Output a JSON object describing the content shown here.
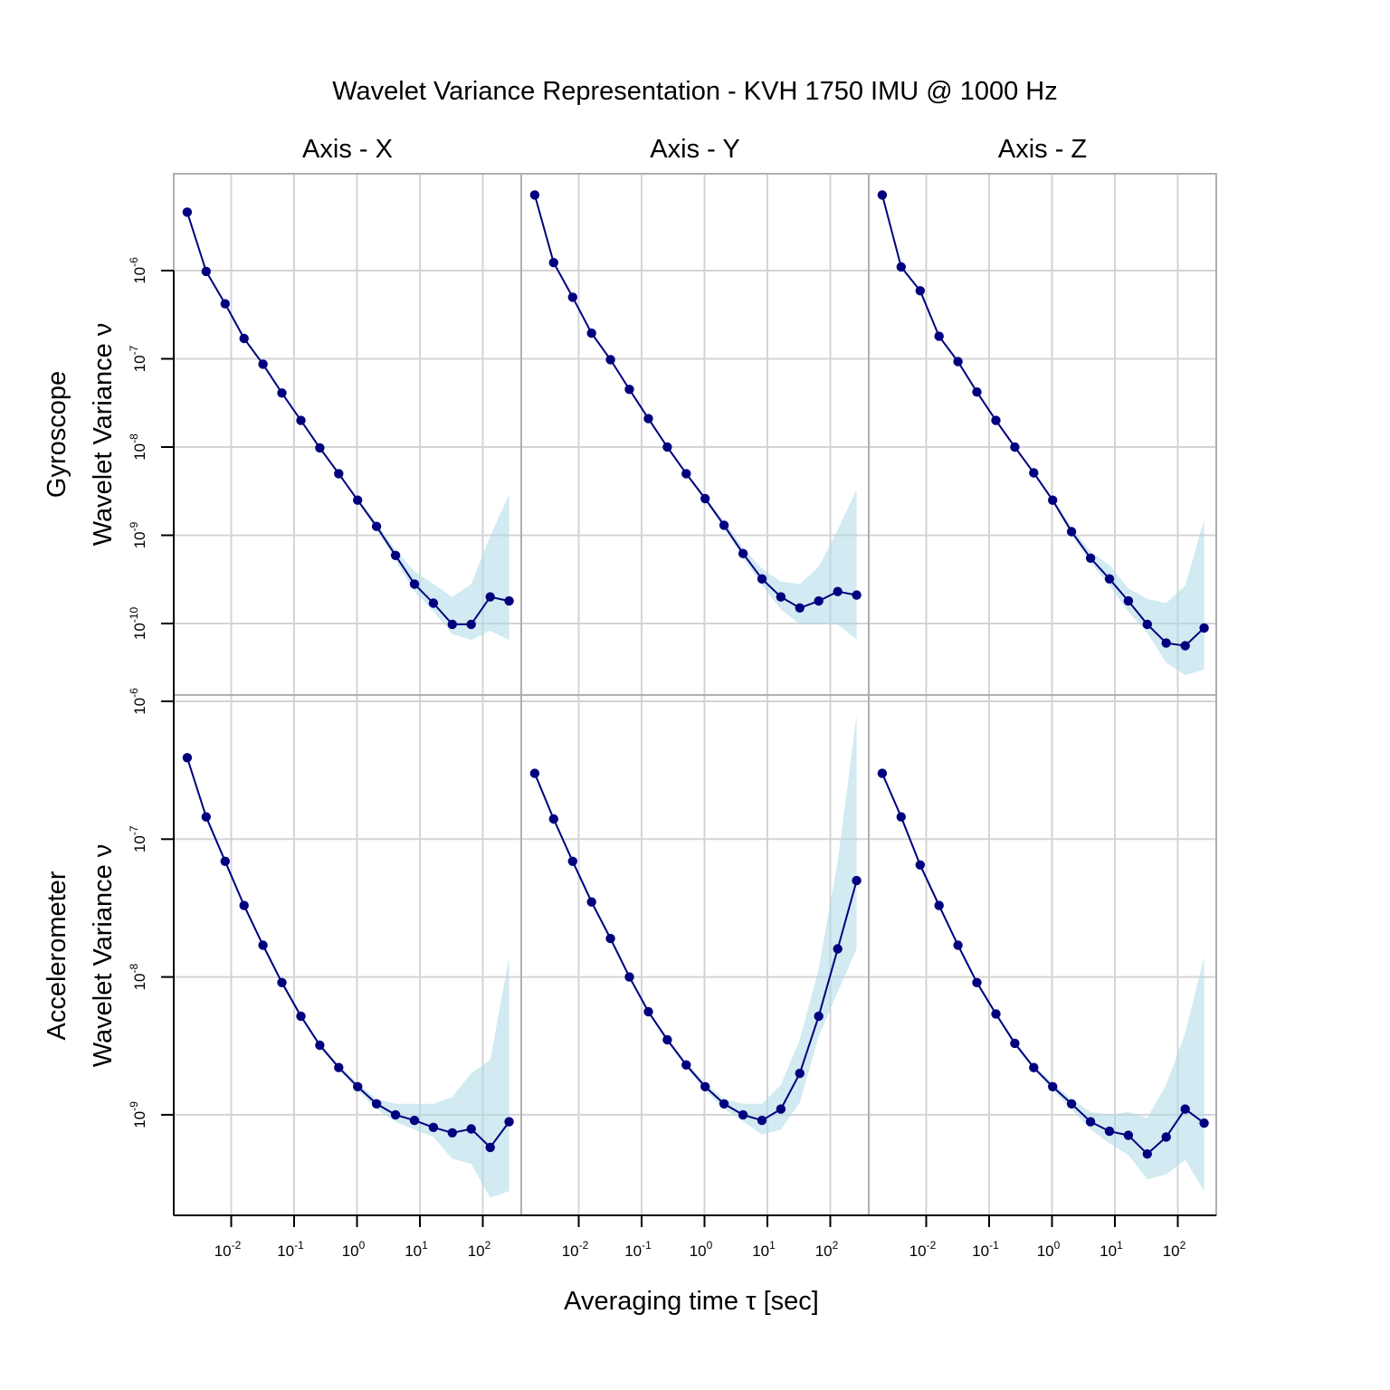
{
  "chart_data": {
    "type": "line",
    "title": "Wavelet Variance Representation - KVH 1750 IMU @ 1000 Hz",
    "xlabel": "Averaging time τ [sec]",
    "ylabel": "Wavelet Variance ν",
    "x_scale": "log",
    "y_scale": "log",
    "grid": true,
    "columns": [
      "Axis - X",
      "Axis - Y",
      "Axis - Z"
    ],
    "rows": [
      {
        "name": "Gyroscope",
        "ylim": [
          1.26e-05,
          1.6e-11
        ],
        "yticks": [
          -6,
          -7,
          -8,
          -9,
          -10
        ]
      },
      {
        "name": "Accelerometer",
        "ylim": [
          1.1e-06,
          1.86e-10
        ],
        "yticks": [
          -6,
          -7,
          -8,
          -9
        ]
      }
    ],
    "xticks": [
      -2,
      -1,
      0,
      1,
      2
    ],
    "tick_base": "10",
    "x": [
      0.002,
      0.004,
      0.008,
      0.016,
      0.032,
      0.064,
      0.128,
      0.256,
      0.512,
      1.024,
      2.048,
      4.096,
      8.192,
      16.384,
      32.768,
      65.536,
      131.072,
      262.144
    ],
    "panels": [
      {
        "row": "Gyroscope",
        "column": "Axis - X",
        "values": [
          4.6e-06,
          9.8e-07,
          4.2e-07,
          1.7e-07,
          8.7e-08,
          4.1e-08,
          2e-08,
          9.8e-09,
          5e-09,
          2.5e-09,
          1.26e-09,
          5.9e-10,
          2.8e-10,
          1.7e-10,
          9.8e-11,
          9.8e-11,
          2e-10,
          1.8e-10
        ],
        "ci_lower": [
          null,
          null,
          null,
          null,
          null,
          null,
          null,
          null,
          null,
          2.4e-09,
          1.15e-09,
          5.2e-10,
          2.3e-10,
          1.38e-10,
          7.6e-11,
          6.5e-11,
          8.3e-11,
          6.5e-11
        ],
        "ci_upper": [
          null,
          null,
          null,
          null,
          null,
          null,
          null,
          null,
          null,
          2.6e-09,
          1.4e-09,
          6.8e-10,
          3.9e-10,
          2.8e-10,
          2e-10,
          2.8e-10,
          9.8e-10,
          2.9e-09
        ]
      },
      {
        "row": "Gyroscope",
        "column": "Axis - Y",
        "values": [
          7.2e-06,
          1.23e-06,
          5e-07,
          1.95e-07,
          9.8e-08,
          4.5e-08,
          2.1e-08,
          1e-08,
          5e-09,
          2.6e-09,
          1.3e-09,
          6.2e-10,
          3.2e-10,
          2e-10,
          1.5e-10,
          1.8e-10,
          2.3e-10,
          2.1e-10
        ],
        "ci_lower": [
          null,
          null,
          null,
          null,
          null,
          null,
          null,
          null,
          null,
          2.5e-09,
          1.2e-09,
          5.5e-10,
          2.7e-10,
          1.45e-10,
          9.8e-11,
          9.8e-11,
          9.8e-11,
          6.6e-11
        ],
        "ci_upper": [
          null,
          null,
          null,
          null,
          null,
          null,
          null,
          null,
          null,
          2.7e-09,
          1.45e-09,
          7.2e-10,
          4.2e-10,
          3e-10,
          2.8e-10,
          4.4e-10,
          1.15e-09,
          3.3e-09
        ]
      },
      {
        "row": "Gyroscope",
        "column": "Axis - Z",
        "values": [
          7.2e-06,
          1.1e-06,
          5.9e-07,
          1.8e-07,
          9.3e-08,
          4.2e-08,
          2e-08,
          1e-08,
          5.1e-09,
          2.5e-09,
          1.1e-09,
          5.5e-10,
          3.2e-10,
          1.8e-10,
          9.8e-11,
          6e-11,
          5.6e-11,
          8.9e-11
        ],
        "ci_lower": [
          null,
          null,
          null,
          null,
          null,
          null,
          null,
          null,
          null,
          2.4e-09,
          1e-09,
          4.9e-10,
          2.7e-10,
          1.35e-10,
          7.8e-11,
          3.6e-11,
          2.6e-11,
          3e-11
        ],
        "ci_upper": [
          null,
          null,
          null,
          null,
          null,
          null,
          null,
          null,
          null,
          2.6e-09,
          1.25e-09,
          6.5e-10,
          4.6e-10,
          2.5e-10,
          1.9e-10,
          1.7e-10,
          2.7e-10,
          1.5e-09
        ]
      },
      {
        "row": "Accelerometer",
        "column": "Axis - X",
        "values": [
          3.9e-07,
          1.45e-07,
          6.9e-08,
          3.3e-08,
          1.7e-08,
          9.1e-09,
          5.2e-09,
          3.2e-09,
          2.2e-09,
          1.6e-09,
          1.2e-09,
          1e-09,
          9.1e-10,
          8.1e-10,
          7.4e-10,
          7.9e-10,
          5.8e-10,
          8.9e-10
        ],
        "ci_lower": [
          null,
          null,
          null,
          null,
          null,
          null,
          null,
          null,
          2.15e-09,
          1.5e-09,
          1.1e-09,
          8.9e-10,
          7.8e-10,
          6.9e-10,
          4.8e-10,
          4.4e-10,
          2.5e-10,
          2.8e-10
        ],
        "ci_upper": [
          null,
          null,
          null,
          null,
          null,
          null,
          null,
          null,
          2.3e-09,
          1.7e-09,
          1.3e-09,
          1.2e-09,
          1.2e-09,
          1.2e-09,
          1.35e-09,
          2e-09,
          2.5e-09,
          1.4e-08
        ]
      },
      {
        "row": "Accelerometer",
        "column": "Axis - Y",
        "values": [
          3e-07,
          1.4e-07,
          6.9e-08,
          3.5e-08,
          1.9e-08,
          1e-08,
          5.6e-09,
          3.5e-09,
          2.3e-09,
          1.6e-09,
          1.2e-09,
          1e-09,
          9.1e-10,
          1.1e-09,
          2e-09,
          5.2e-09,
          1.6e-08,
          5e-08
        ],
        "ci_lower": [
          null,
          null,
          null,
          null,
          null,
          null,
          null,
          null,
          2.2e-09,
          1.5e-09,
          1.1e-09,
          9e-10,
          7.2e-10,
          7.8e-10,
          1.23e-09,
          3.7e-09,
          7.8e-09,
          1.6e-08
        ],
        "ci_upper": [
          null,
          null,
          null,
          null,
          null,
          null,
          null,
          null,
          2.4e-09,
          1.7e-09,
          1.3e-09,
          1.2e-09,
          1.2e-09,
          1.65e-09,
          3.5e-09,
          1.15e-08,
          6.9e-08,
          7.9e-07
        ]
      },
      {
        "row": "Accelerometer",
        "column": "Axis - Z",
        "values": [
          3e-07,
          1.45e-07,
          6.5e-08,
          3.3e-08,
          1.7e-08,
          9.1e-09,
          5.4e-09,
          3.3e-09,
          2.2e-09,
          1.6e-09,
          1.2e-09,
          8.9e-10,
          7.6e-10,
          7.1e-10,
          5.2e-10,
          6.9e-10,
          1.1e-09,
          8.7e-10
        ],
        "ci_lower": [
          null,
          null,
          null,
          null,
          null,
          null,
          null,
          null,
          2.15e-09,
          1.5e-09,
          1.1e-09,
          7.8e-10,
          6.2e-10,
          5.1e-10,
          3.4e-10,
          3.7e-10,
          4.7e-10,
          2.8e-10
        ],
        "ci_upper": [
          null,
          null,
          null,
          null,
          null,
          null,
          null,
          null,
          2.3e-09,
          1.7e-09,
          1.3e-09,
          1.05e-09,
          1e-09,
          1.05e-09,
          9.5e-10,
          1.65e-09,
          3.9e-09,
          1.4e-08
        ]
      }
    ]
  },
  "colors": {
    "line": "#00007f",
    "band": "#add8e6",
    "grid": "#d4d4d4",
    "frame": "#b0b0b0"
  }
}
